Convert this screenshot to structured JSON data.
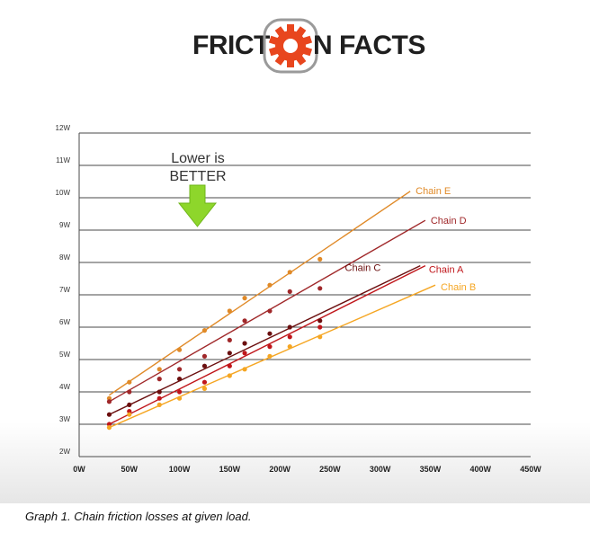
{
  "logo": {
    "left": "FRICT",
    "right": "N FACTS"
  },
  "caption": "Graph 1.  Chain friction losses at given load.",
  "colors": {
    "chain_a": "#c0161b",
    "chain_b": "#f5a623",
    "chain_c": "#6b0f0f",
    "chain_d": "#a0282a",
    "chain_e": "#e08a28",
    "annotation_arrow": "#8ed62b",
    "gear": "#e8461e"
  },
  "chart_data": {
    "type": "scatter",
    "title": "",
    "xlabel": "",
    "ylabel": "",
    "x_ticks": [
      "0W",
      "50W",
      "100W",
      "150W",
      "200W",
      "250W",
      "300W",
      "350W",
      "400W",
      "450W"
    ],
    "y_ticks": [
      "2W",
      "3W",
      "4W",
      "5W",
      "6W",
      "7W",
      "8W",
      "9W",
      "10W",
      "11W",
      "12W"
    ],
    "xlim": [
      0,
      450
    ],
    "ylim": [
      2,
      12
    ],
    "grid": true,
    "annotation": {
      "line1": "Lower is",
      "line2": "BETTER"
    },
    "series": [
      {
        "name": "Chain E",
        "color": "#e08a28",
        "fit": [
          [
            30,
            3.9
          ],
          [
            330,
            10.2
          ]
        ],
        "points": [
          [
            30,
            3.8
          ],
          [
            50,
            4.3
          ],
          [
            80,
            4.7
          ],
          [
            100,
            5.3
          ],
          [
            125,
            5.9
          ],
          [
            150,
            6.5
          ],
          [
            165,
            6.9
          ],
          [
            190,
            7.3
          ],
          [
            210,
            7.7
          ],
          [
            240,
            8.1
          ]
        ]
      },
      {
        "name": "Chain D",
        "color": "#a0282a",
        "fit": [
          [
            30,
            3.7
          ],
          [
            345,
            9.3
          ]
        ],
        "points": [
          [
            30,
            3.7
          ],
          [
            50,
            4.0
          ],
          [
            80,
            4.4
          ],
          [
            100,
            4.7
          ],
          [
            125,
            5.1
          ],
          [
            150,
            5.6
          ],
          [
            165,
            6.2
          ],
          [
            190,
            6.5
          ],
          [
            210,
            7.1
          ],
          [
            240,
            7.2
          ]
        ]
      },
      {
        "name": "Chain C",
        "color": "#6b0f0f",
        "fit": [
          [
            30,
            3.3
          ],
          [
            340,
            7.9
          ]
        ],
        "points": [
          [
            30,
            3.3
          ],
          [
            50,
            3.6
          ],
          [
            80,
            4.0
          ],
          [
            100,
            4.4
          ],
          [
            125,
            4.8
          ],
          [
            150,
            5.2
          ],
          [
            165,
            5.5
          ],
          [
            190,
            5.8
          ],
          [
            210,
            6.0
          ],
          [
            240,
            6.2
          ]
        ]
      },
      {
        "name": "Chain A",
        "color": "#c0161b",
        "fit": [
          [
            30,
            3.0
          ],
          [
            345,
            7.9
          ]
        ],
        "points": [
          [
            30,
            3.0
          ],
          [
            50,
            3.4
          ],
          [
            80,
            3.8
          ],
          [
            100,
            4.0
          ],
          [
            125,
            4.3
          ],
          [
            150,
            4.8
          ],
          [
            165,
            5.2
          ],
          [
            190,
            5.4
          ],
          [
            210,
            5.7
          ],
          [
            240,
            6.0
          ]
        ]
      },
      {
        "name": "Chain B",
        "color": "#f5a623",
        "fit": [
          [
            30,
            2.9
          ],
          [
            355,
            7.3
          ]
        ],
        "points": [
          [
            30,
            2.9
          ],
          [
            50,
            3.3
          ],
          [
            80,
            3.6
          ],
          [
            100,
            3.8
          ],
          [
            125,
            4.1
          ],
          [
            150,
            4.5
          ],
          [
            165,
            4.7
          ],
          [
            190,
            5.1
          ],
          [
            210,
            5.4
          ],
          [
            240,
            5.7
          ]
        ]
      }
    ]
  }
}
